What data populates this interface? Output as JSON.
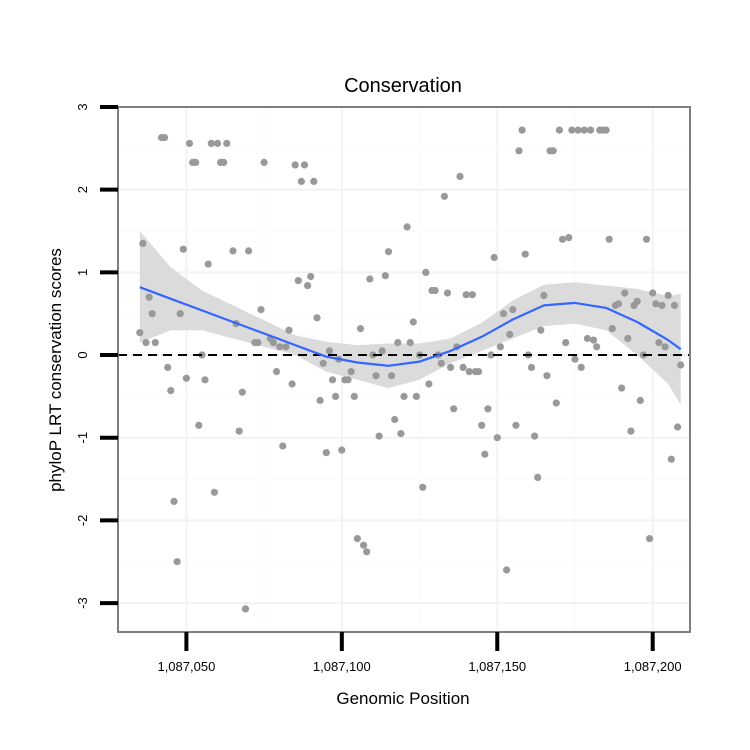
{
  "chart_data": {
    "type": "scatter",
    "title": "Conservation",
    "xlabel": "Genomic Position",
    "ylabel": "phyloP LRT conservation scores",
    "xlim": [
      1087028,
      1087212
    ],
    "ylim": [
      -3.35,
      3.0
    ],
    "xticks": [
      {
        "value": 1087050,
        "label": "1,087,050"
      },
      {
        "value": 1087100,
        "label": "1,087,100"
      },
      {
        "value": 1087150,
        "label": "1,087,150"
      },
      {
        "value": 1087200,
        "label": "1,087,200"
      }
    ],
    "yticks": [
      {
        "value": 3,
        "label": "3"
      },
      {
        "value": 2,
        "label": "2"
      },
      {
        "value": 1,
        "label": "1"
      },
      {
        "value": 0,
        "label": "0"
      },
      {
        "value": -1,
        "label": "-1"
      },
      {
        "value": -2,
        "label": "-2"
      },
      {
        "value": -3,
        "label": "-3"
      }
    ],
    "reference_line": {
      "y": 0,
      "style": "dashed",
      "color": "#000000"
    },
    "point_color": "#999999",
    "smooth_color": "#3366ff",
    "ribbon_color": "#d9d9d9",
    "grid": true,
    "points": [
      [
        1087036,
        1.35
      ],
      [
        1087037,
        0.15
      ],
      [
        1087038,
        0.7
      ],
      [
        1087039,
        0.5
      ],
      [
        1087040,
        0.15
      ],
      [
        1087035,
        0.27
      ],
      [
        1087042,
        2.63
      ],
      [
        1087043,
        2.63
      ],
      [
        1087044,
        -0.15
      ],
      [
        1087045,
        -0.43
      ],
      [
        1087046,
        -1.77
      ],
      [
        1087047,
        -2.5
      ],
      [
        1087048,
        0.5
      ],
      [
        1087049,
        1.28
      ],
      [
        1087050,
        -0.28
      ],
      [
        1087051,
        2.56
      ],
      [
        1087052,
        2.33
      ],
      [
        1087053,
        2.33
      ],
      [
        1087054,
        -0.85
      ],
      [
        1087055,
        0.0
      ],
      [
        1087056,
        -0.3
      ],
      [
        1087057,
        1.1
      ],
      [
        1087058,
        2.56
      ],
      [
        1087059,
        -1.66
      ],
      [
        1087060,
        2.56
      ],
      [
        1087061,
        2.33
      ],
      [
        1087062,
        2.33
      ],
      [
        1087063,
        2.56
      ],
      [
        1087065,
        1.26
      ],
      [
        1087066,
        0.38
      ],
      [
        1087067,
        -0.92
      ],
      [
        1087068,
        -0.45
      ],
      [
        1087069,
        -3.07
      ],
      [
        1087070,
        1.26
      ],
      [
        1087072,
        0.15
      ],
      [
        1087073,
        0.15
      ],
      [
        1087074,
        0.55
      ],
      [
        1087075,
        2.33
      ],
      [
        1087077,
        0.2
      ],
      [
        1087078,
        0.15
      ],
      [
        1087079,
        -0.2
      ],
      [
        1087080,
        0.1
      ],
      [
        1087081,
        -1.1
      ],
      [
        1087082,
        0.1
      ],
      [
        1087083,
        0.3
      ],
      [
        1087084,
        -0.35
      ],
      [
        1087085,
        2.3
      ],
      [
        1087086,
        0.9
      ],
      [
        1087087,
        2.1
      ],
      [
        1087088,
        2.3
      ],
      [
        1087089,
        0.84
      ],
      [
        1087090,
        0.95
      ],
      [
        1087091,
        2.1
      ],
      [
        1087092,
        0.45
      ],
      [
        1087093,
        -0.55
      ],
      [
        1087094,
        -0.1
      ],
      [
        1087095,
        -1.18
      ],
      [
        1087096,
        0.05
      ],
      [
        1087097,
        -0.3
      ],
      [
        1087098,
        -0.5
      ],
      [
        1087099,
        -0.05
      ],
      [
        1087100,
        -1.15
      ],
      [
        1087101,
        -0.3
      ],
      [
        1087102,
        -0.3
      ],
      [
        1087103,
        -0.2
      ],
      [
        1087104,
        -0.5
      ],
      [
        1087105,
        -2.22
      ],
      [
        1087106,
        0.32
      ],
      [
        1087107,
        -2.3
      ],
      [
        1087108,
        -2.38
      ],
      [
        1087109,
        0.92
      ],
      [
        1087110,
        0.0
      ],
      [
        1087111,
        -0.25
      ],
      [
        1087112,
        -0.98
      ],
      [
        1087113,
        0.05
      ],
      [
        1087114,
        0.96
      ],
      [
        1087115,
        1.25
      ],
      [
        1087116,
        -0.25
      ],
      [
        1087117,
        -0.78
      ],
      [
        1087118,
        0.15
      ],
      [
        1087119,
        -0.95
      ],
      [
        1087120,
        -0.5
      ],
      [
        1087121,
        1.55
      ],
      [
        1087122,
        0.15
      ],
      [
        1087123,
        0.4
      ],
      [
        1087124,
        -0.5
      ],
      [
        1087125,
        0.0
      ],
      [
        1087126,
        -1.6
      ],
      [
        1087127,
        1.0
      ],
      [
        1087128,
        -0.35
      ],
      [
        1087129,
        0.78
      ],
      [
        1087130,
        0.78
      ],
      [
        1087131,
        0.0
      ],
      [
        1087132,
        -0.1
      ],
      [
        1087133,
        1.92
      ],
      [
        1087134,
        0.75
      ],
      [
        1087135,
        -0.15
      ],
      [
        1087136,
        -0.65
      ],
      [
        1087137,
        0.1
      ],
      [
        1087138,
        2.16
      ],
      [
        1087139,
        -0.15
      ],
      [
        1087140,
        0.73
      ],
      [
        1087141,
        -0.2
      ],
      [
        1087142,
        0.73
      ],
      [
        1087143,
        -0.2
      ],
      [
        1087144,
        -0.2
      ],
      [
        1087145,
        -0.85
      ],
      [
        1087146,
        -1.2
      ],
      [
        1087147,
        -0.65
      ],
      [
        1087148,
        0.0
      ],
      [
        1087149,
        1.18
      ],
      [
        1087150,
        -1.0
      ],
      [
        1087151,
        0.1
      ],
      [
        1087152,
        0.5
      ],
      [
        1087153,
        -2.6
      ],
      [
        1087154,
        0.25
      ],
      [
        1087155,
        0.55
      ],
      [
        1087156,
        -0.85
      ],
      [
        1087157,
        2.47
      ],
      [
        1087158,
        2.72
      ],
      [
        1087159,
        1.22
      ],
      [
        1087160,
        0.0
      ],
      [
        1087161,
        -0.15
      ],
      [
        1087162,
        -0.98
      ],
      [
        1087163,
        -1.48
      ],
      [
        1087164,
        0.3
      ],
      [
        1087165,
        0.72
      ],
      [
        1087166,
        -0.25
      ],
      [
        1087167,
        2.47
      ],
      [
        1087168,
        2.47
      ],
      [
        1087169,
        -0.58
      ],
      [
        1087170,
        2.72
      ],
      [
        1087171,
        1.4
      ],
      [
        1087172,
        0.15
      ],
      [
        1087173,
        1.42
      ],
      [
        1087174,
        2.72
      ],
      [
        1087175,
        -0.05
      ],
      [
        1087176,
        2.72
      ],
      [
        1087177,
        -0.15
      ],
      [
        1087178,
        2.72
      ],
      [
        1087179,
        0.2
      ],
      [
        1087180,
        2.72
      ],
      [
        1087181,
        0.18
      ],
      [
        1087182,
        0.1
      ],
      [
        1087183,
        2.72
      ],
      [
        1087184,
        2.72
      ],
      [
        1087185,
        2.72
      ],
      [
        1087186,
        1.4
      ],
      [
        1087187,
        0.32
      ],
      [
        1087188,
        0.6
      ],
      [
        1087189,
        0.62
      ],
      [
        1087190,
        -0.4
      ],
      [
        1087191,
        0.75
      ],
      [
        1087192,
        0.2
      ],
      [
        1087193,
        -0.92
      ],
      [
        1087194,
        0.6
      ],
      [
        1087195,
        0.65
      ],
      [
        1087196,
        -0.55
      ],
      [
        1087197,
        0.0
      ],
      [
        1087198,
        1.4
      ],
      [
        1087199,
        -2.22
      ],
      [
        1087200,
        0.75
      ],
      [
        1087201,
        0.62
      ],
      [
        1087202,
        0.15
      ],
      [
        1087203,
        0.6
      ],
      [
        1087204,
        0.1
      ],
      [
        1087205,
        0.72
      ],
      [
        1087206,
        -1.26
      ],
      [
        1087207,
        0.6
      ],
      [
        1087208,
        -0.87
      ],
      [
        1087209,
        -0.12
      ]
    ],
    "smooth": {
      "x": [
        1087035,
        1087045,
        1087055,
        1087065,
        1087075,
        1087085,
        1087095,
        1087105,
        1087115,
        1087125,
        1087135,
        1087145,
        1087155,
        1087165,
        1087175,
        1087185,
        1087195,
        1087205,
        1087209
      ],
      "y": [
        0.82,
        0.68,
        0.54,
        0.4,
        0.26,
        0.12,
        -0.02,
        -0.09,
        -0.13,
        -0.08,
        0.05,
        0.22,
        0.43,
        0.6,
        0.63,
        0.57,
        0.4,
        0.18,
        0.07
      ],
      "lower": [
        0.15,
        0.3,
        0.3,
        0.2,
        0.1,
        0.0,
        -0.2,
        -0.3,
        -0.4,
        -0.3,
        -0.1,
        0.05,
        0.2,
        0.35,
        0.38,
        0.3,
        0.0,
        -0.35,
        -0.6
      ],
      "upper": [
        1.5,
        1.06,
        0.78,
        0.6,
        0.42,
        0.24,
        0.16,
        0.12,
        0.14,
        0.14,
        0.2,
        0.39,
        0.66,
        0.85,
        0.88,
        0.84,
        0.8,
        0.71,
        0.74
      ]
    }
  }
}
